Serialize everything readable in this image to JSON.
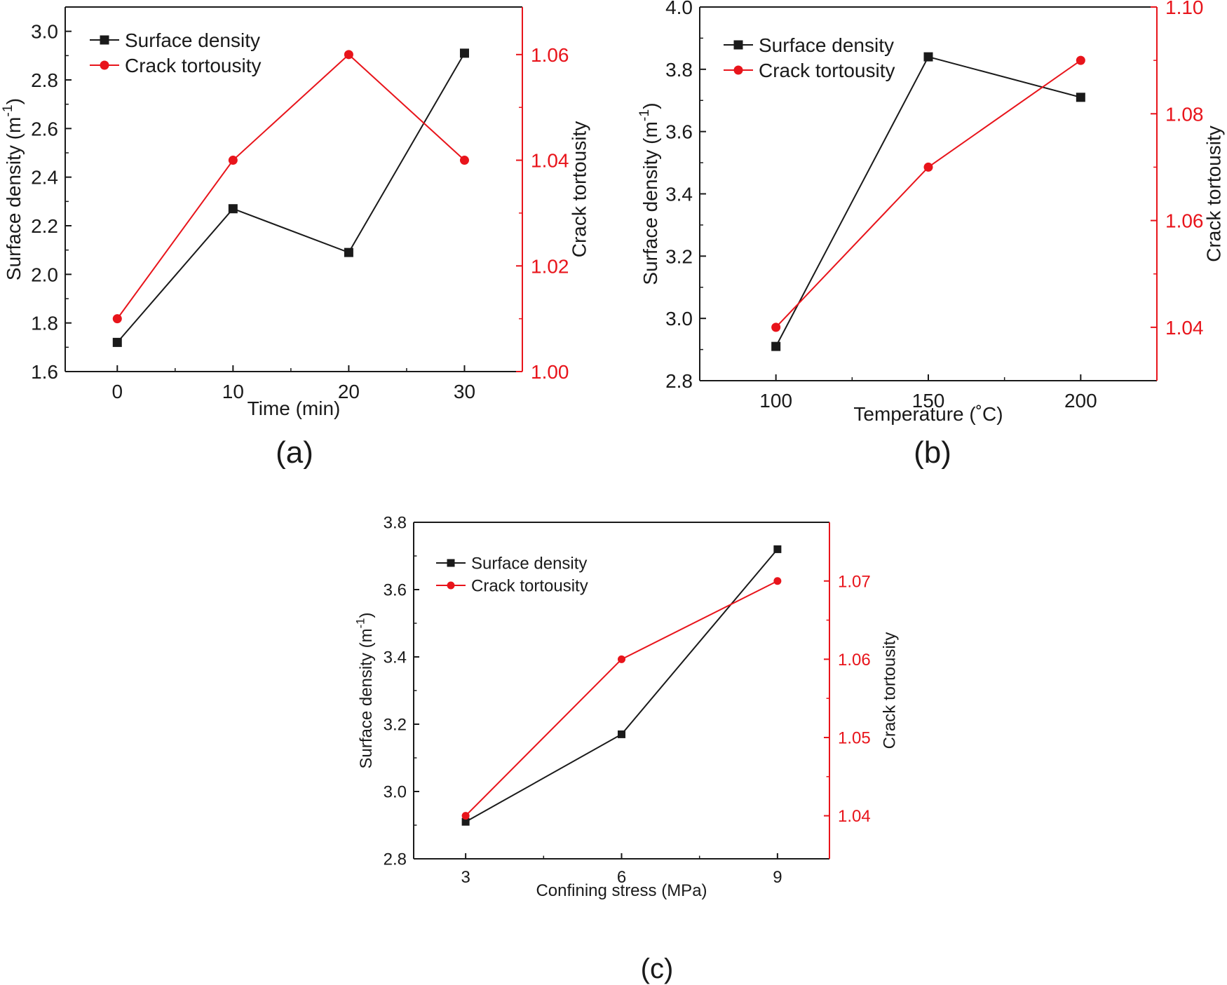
{
  "chart_data": [
    {
      "panel_label": "(a)",
      "type": "line",
      "xlabel": "Time (min)",
      "ylabel": "Surface density (m",
      "ylabel_sup": "-1",
      "ylabel_end": ")",
      "y2label": "Crack tortousity",
      "x": [
        0,
        10,
        20,
        30
      ],
      "x_ticks": [
        "0",
        "10",
        "20",
        "30"
      ],
      "xlim": [
        -4.5,
        35
      ],
      "ylim": [
        1.6,
        3.1
      ],
      "y_ticks": [
        "1.6",
        "1.8",
        "2.0",
        "2.2",
        "2.4",
        "2.6",
        "2.8",
        "3.0"
      ],
      "y2lim": [
        1.0,
        1.069
      ],
      "y2_ticks": [
        "1.00",
        "1.02",
        "1.04",
        "1.06"
      ],
      "series": [
        {
          "name": "Surface density",
          "axis": "left",
          "marker": "square",
          "values": [
            1.72,
            2.27,
            2.09,
            2.91
          ]
        },
        {
          "name": "Crack tortousity",
          "axis": "right",
          "marker": "circle",
          "values": [
            1.01,
            1.04,
            1.06,
            1.04
          ]
        }
      ],
      "legend": "top-left"
    },
    {
      "panel_label": "(b)",
      "type": "line",
      "xlabel": "Temperature (˚C)",
      "ylabel": "Surface density (m",
      "ylabel_sup": "-1",
      "ylabel_end": ")",
      "y2label": "Crack tortousity",
      "x": [
        100,
        150,
        200
      ],
      "x_ticks": [
        "100",
        "150",
        "200"
      ],
      "xlim": [
        75,
        225
      ],
      "ylim": [
        2.8,
        4.0
      ],
      "y_ticks": [
        "2.8",
        "3.0",
        "3.2",
        "3.4",
        "3.6",
        "3.8",
        "4.0"
      ],
      "y2lim": [
        1.03,
        1.1
      ],
      "y2_ticks": [
        "1.04",
        "1.06",
        "1.08",
        "1.10"
      ],
      "series": [
        {
          "name": "Surface density",
          "axis": "left",
          "marker": "square",
          "values": [
            2.91,
            3.84,
            3.71
          ]
        },
        {
          "name": "Crack tortousity",
          "axis": "right",
          "marker": "circle",
          "values": [
            1.04,
            1.07,
            1.09
          ]
        }
      ],
      "legend": "top-left"
    },
    {
      "panel_label": "(c)",
      "type": "line",
      "xlabel": "Confining stress (MPa)",
      "ylabel": "Surface density (m",
      "ylabel_sup": "-1",
      "ylabel_end": ")",
      "y2label": "Crack tortousity",
      "x": [
        3,
        6,
        9
      ],
      "x_ticks": [
        "3",
        "6",
        "9"
      ],
      "xlim": [
        2,
        10
      ],
      "ylim": [
        2.8,
        3.8
      ],
      "y_ticks": [
        "2.8",
        "3.0",
        "3.2",
        "3.4",
        "3.6",
        "3.8"
      ],
      "y2lim": [
        1.0345,
        1.0775
      ],
      "y2_ticks": [
        "1.04",
        "1.05",
        "1.06",
        "1.07"
      ],
      "series": [
        {
          "name": "Surface density",
          "axis": "left",
          "marker": "square",
          "values": [
            2.91,
            3.17,
            3.72
          ]
        },
        {
          "name": "Crack tortousity",
          "axis": "right",
          "marker": "circle",
          "values": [
            1.04,
            1.06,
            1.07
          ]
        }
      ],
      "legend": "top-left"
    }
  ],
  "colors": {
    "surface_density": "#1a1a1a",
    "crack_tortousity": "#e8141b",
    "axis": "#1a1a1a"
  }
}
